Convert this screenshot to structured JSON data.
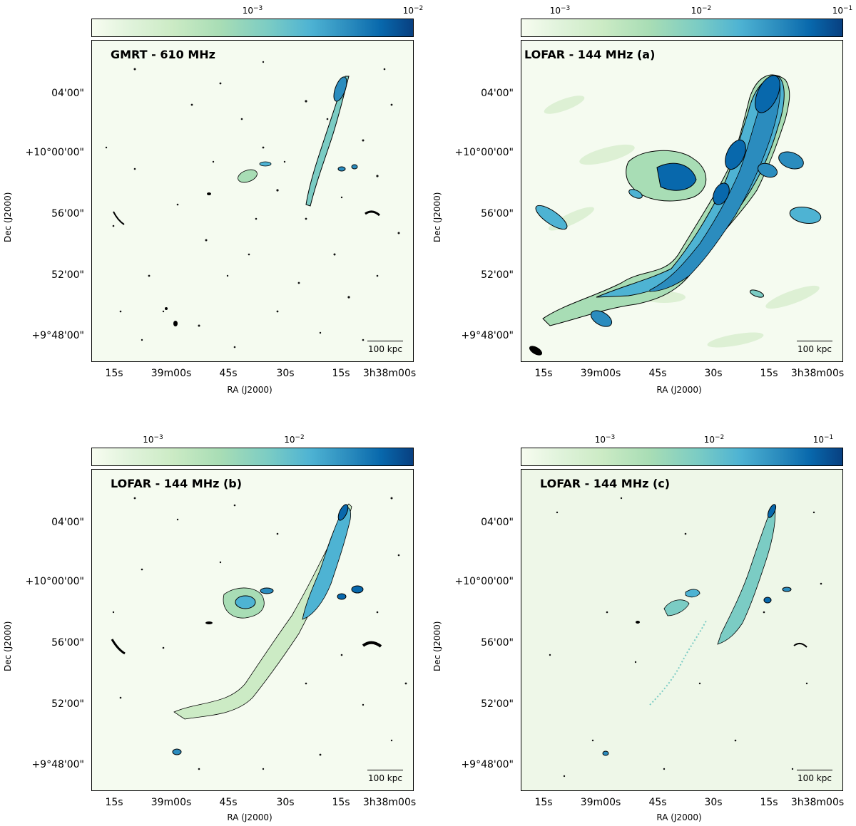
{
  "panels": [
    {
      "title": "GMRT - 610 MHz",
      "colorbar_ticks": [
        "10",
        "10"
      ],
      "colorbar_exps": [
        "−3",
        "−2"
      ],
      "scale_label": "100 kpc",
      "ylabel": "Dec (J2000)",
      "xlabel": "RA (J2000)",
      "yticks": [
        "04'00\"",
        "+10°00'00\"",
        "56'00\"",
        "52'00\"",
        "+9°48'00\""
      ],
      "xticks": [
        "15s",
        "39m00s",
        "45s",
        "30s",
        "15s",
        "3h38m00s"
      ]
    },
    {
      "title": "LOFAR - 144 MHz (a)",
      "colorbar_ticks": [
        "10",
        "10",
        "10"
      ],
      "colorbar_exps": [
        "−3",
        "−2",
        "−1"
      ],
      "scale_label": "100 kpc",
      "ylabel": "Dec (J2000)",
      "xlabel": "RA (J2000)",
      "yticks": [
        "04'00\"",
        "+10°00'00\"",
        "56'00\"",
        "52'00\"",
        "+9°48'00\""
      ],
      "xticks": [
        "15s",
        "39m00s",
        "45s",
        "30s",
        "15s",
        "3h38m00s"
      ]
    },
    {
      "title": "LOFAR - 144 MHz (b)",
      "colorbar_ticks": [
        "10",
        "10"
      ],
      "colorbar_exps": [
        "−3",
        "−2"
      ],
      "scale_label": "100 kpc",
      "ylabel": "Dec (J2000)",
      "xlabel": "RA (J2000)",
      "yticks": [
        "04'00\"",
        "+10°00'00\"",
        "56'00\"",
        "52'00\"",
        "+9°48'00\""
      ],
      "xticks": [
        "15s",
        "39m00s",
        "45s",
        "30s",
        "15s",
        "3h38m00s"
      ]
    },
    {
      "title": "LOFAR - 144 MHz (c)",
      "colorbar_ticks": [
        "10",
        "10",
        "10"
      ],
      "colorbar_exps": [
        "−3",
        "−2",
        "−1"
      ],
      "scale_label": "100 kpc",
      "ylabel": "Dec (J2000)",
      "xlabel": "RA (J2000)",
      "yticks": [
        "04'00\"",
        "+10°00'00\"",
        "56'00\"",
        "52'00\"",
        "+9°48'00\""
      ],
      "xticks": [
        "15s",
        "39m00s",
        "45s",
        "30s",
        "15s",
        "3h38m00s"
      ]
    }
  ],
  "colormap": [
    "#f7fcf0",
    "#ccebc5",
    "#7bccc4",
    "#2b8cbe",
    "#084081"
  ]
}
